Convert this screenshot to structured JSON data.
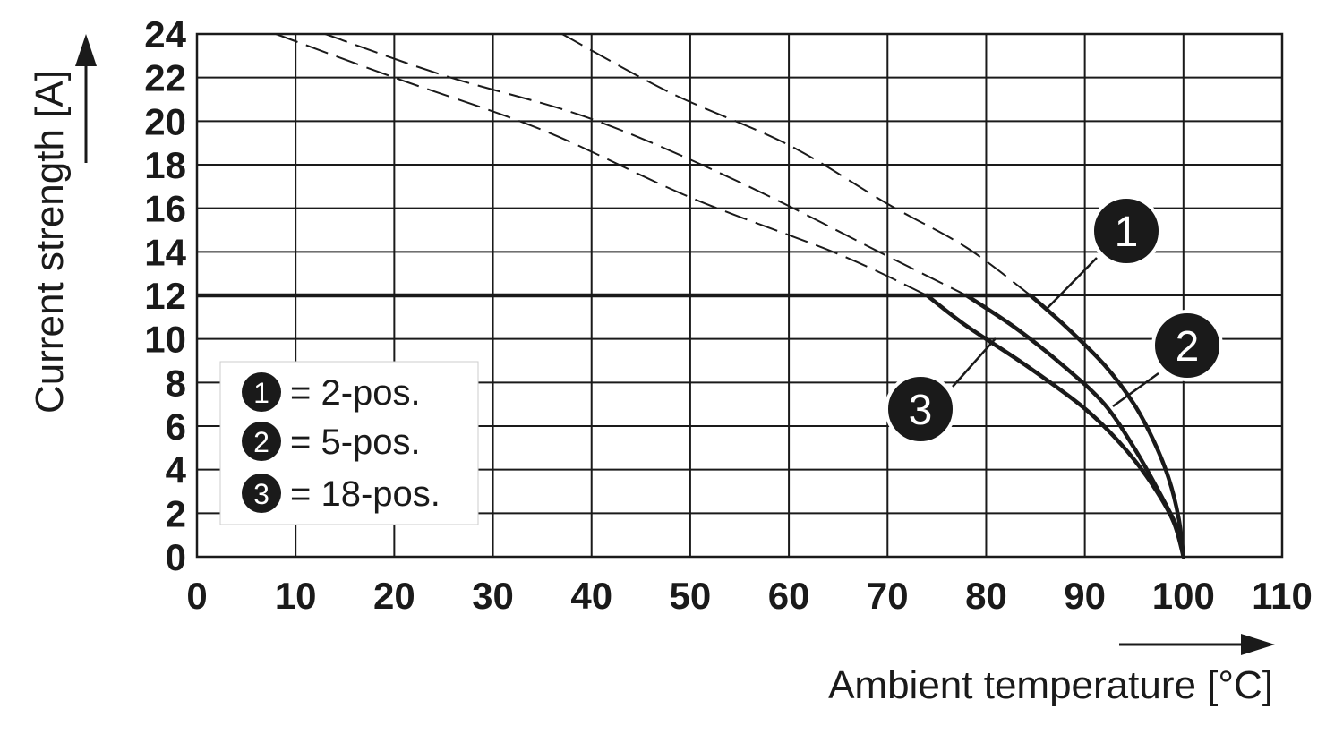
{
  "chart_data": {
    "type": "line",
    "xlabel": "Ambient temperature [°C]",
    "ylabel": "Current strength [A]",
    "xlim": [
      0,
      110
    ],
    "ylim": [
      0,
      24
    ],
    "x_ticks": [
      "0",
      "10",
      "20",
      "30",
      "40",
      "50",
      "60",
      "70",
      "80",
      "90",
      "100",
      "110"
    ],
    "y_ticks": [
      "0",
      "2",
      "4",
      "6",
      "8",
      "10",
      "12",
      "14",
      "16",
      "18",
      "20",
      "22",
      "24"
    ],
    "grid": true,
    "max_current": 12,
    "series": [
      {
        "name": "1",
        "legend": "= 2-pos.",
        "derating": [
          [
            84.5,
            12
          ],
          [
            88,
            10.6
          ],
          [
            92,
            8.8
          ],
          [
            95,
            7.0
          ],
          [
            97,
            5.3
          ],
          [
            98.5,
            3.6
          ],
          [
            99.5,
            1.8
          ],
          [
            100,
            0
          ]
        ],
        "dashed_extension": [
          [
            37,
            24
          ],
          [
            48,
            21.3
          ],
          [
            60,
            18.9
          ],
          [
            70,
            16.2
          ],
          [
            78,
            14.2
          ],
          [
            84.5,
            12
          ]
        ]
      },
      {
        "name": "2",
        "legend": "= 5-pos.",
        "derating": [
          [
            78,
            12
          ],
          [
            83,
            10.5
          ],
          [
            88,
            8.7
          ],
          [
            92,
            7.0
          ],
          [
            95,
            5.0
          ],
          [
            97.5,
            3.0
          ],
          [
            99.5,
            1.2
          ],
          [
            100,
            0
          ]
        ],
        "dashed_extension": [
          [
            13,
            24
          ],
          [
            25,
            22.1
          ],
          [
            40,
            20.1
          ],
          [
            55,
            17.2
          ],
          [
            70,
            13.8
          ],
          [
            78,
            12
          ]
        ]
      },
      {
        "name": "3",
        "legend": "= 18-pos.",
        "derating": [
          [
            74,
            12
          ],
          [
            78,
            10.6
          ],
          [
            84,
            8.8
          ],
          [
            90,
            6.8
          ],
          [
            94,
            5.0
          ],
          [
            97,
            3.2
          ],
          [
            99,
            1.6
          ],
          [
            100,
            0
          ]
        ],
        "dashed_extension": [
          [
            8,
            24
          ],
          [
            20,
            22.0
          ],
          [
            35,
            19.6
          ],
          [
            50,
            16.5
          ],
          [
            65,
            13.9
          ],
          [
            74,
            12
          ]
        ]
      }
    ],
    "legend_position": "bottom-left",
    "colors": {
      "line": "#1a1a1a",
      "grid": "#1a1a1a",
      "marker": "#1a1a1a",
      "background": "#ffffff"
    }
  }
}
